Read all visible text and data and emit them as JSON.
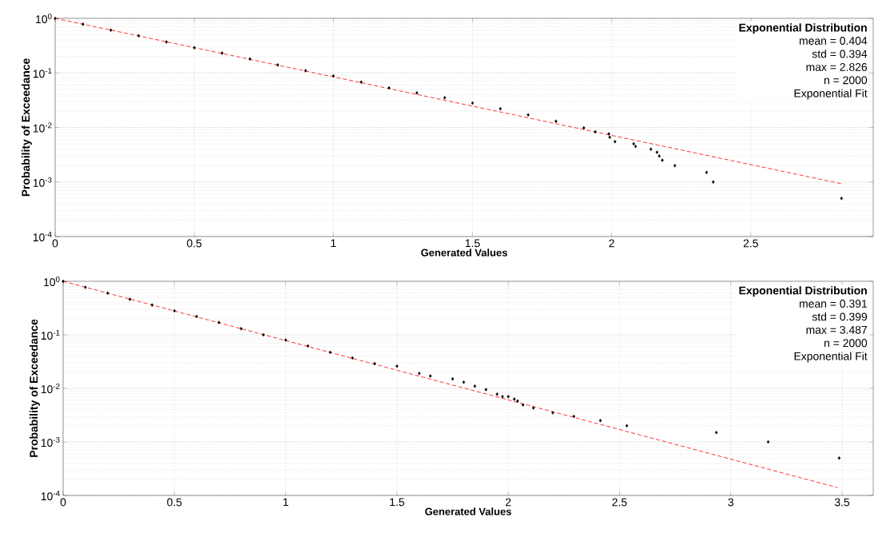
{
  "chart_data": [
    {
      "type": "scatter",
      "xlabel": "Generated Values",
      "ylabel": "Probability of Exceedance",
      "log": "y",
      "grid": true,
      "xlim": [
        0,
        2.94
      ],
      "ylim": [
        0.0001,
        1
      ],
      "xticks": [
        0,
        0.5,
        1,
        1.5,
        2,
        2.5
      ],
      "yticks": [
        {
          "value": 0.0001,
          "label": "10$^{-4}$"
        },
        {
          "value": 0.001,
          "label": "10$^{-3}$"
        },
        {
          "value": 0.01,
          "label": "10$^{-2}$"
        },
        {
          "value": 0.1,
          "label": "10$^{-1}$"
        },
        {
          "value": 1,
          "label": "10$^{0}$"
        }
      ],
      "annotations": [
        "**Exponential Distribution**",
        "mean = 0.404",
        "std = 0.394",
        "max = 2.826",
        "n = 2000",
        "Exponential Fit"
      ],
      "series": [
        {
          "color": "#000000",
          "marker": "diamond",
          "x": [
            0,
            0.1,
            0.2,
            0.3,
            0.4,
            0.5,
            0.6,
            0.7,
            0.8,
            0.9,
            1.0,
            1.1,
            1.2,
            1.3,
            1.4,
            1.5,
            1.6,
            1.7,
            1.8,
            1.9,
            1.941,
            1.99,
            1.993,
            2.012,
            2.079,
            2.086,
            2.141,
            2.163,
            2.171,
            2.182,
            2.227,
            2.341,
            2.365,
            2.826
          ],
          "values": [
            1,
            0.78,
            0.61,
            0.48,
            0.37,
            0.29,
            0.23,
            0.18,
            0.14,
            0.11,
            0.088,
            0.068,
            0.053,
            0.043,
            0.035,
            0.028,
            0.022,
            0.017,
            0.013,
            0.0098,
            0.0083,
            0.0076,
            0.0066,
            0.0055,
            0.005,
            0.0045,
            0.004,
            0.0035,
            0.003,
            0.0025,
            0.002,
            0.0015,
            0.001,
            0.0005
          ]
        },
        {
          "type": "line",
          "color": "#ff0000",
          "line_style": "dashed",
          "marker": "none",
          "x": [
            0,
            2.826
          ],
          "values": [
            1,
            0.00093
          ]
        }
      ]
    },
    {
      "type": "scatter",
      "xlabel": "Generated Values",
      "ylabel": "Probability of Exceedance",
      "log": "y",
      "grid": true,
      "xlim": [
        0,
        3.64
      ],
      "ylim": [
        0.0001,
        1
      ],
      "xticks": [
        0,
        0.5,
        1,
        1.5,
        2,
        2.5,
        3,
        3.5
      ],
      "yticks": [
        {
          "value": 0.0001,
          "label": "10$^{-4}$"
        },
        {
          "value": 0.001,
          "label": "10$^{-3}$"
        },
        {
          "value": 0.01,
          "label": "10$^{-2}$"
        },
        {
          "value": 0.1,
          "label": "10$^{-1}$"
        },
        {
          "value": 1,
          "label": "10$^{0}$"
        }
      ],
      "annotations": [
        "**Exponential Distribution**",
        "mean = 0.391",
        "std = 0.399",
        "max = 3.487",
        "n = 2000",
        "Exponential Fit"
      ],
      "series": [
        {
          "color": "#000000",
          "marker": "diamond",
          "x": [
            0,
            0.1,
            0.2,
            0.3,
            0.4,
            0.5,
            0.6,
            0.7,
            0.8,
            0.9,
            1.0,
            1.1,
            1.2,
            1.3,
            1.4,
            1.5,
            1.6,
            1.65,
            1.75,
            1.8,
            1.85,
            1.9,
            1.95,
            1.974,
            2.0,
            2.027,
            2.042,
            2.066,
            2.113,
            2.2,
            2.295,
            2.414,
            2.533,
            2.935,
            3.168,
            3.487
          ],
          "values": [
            1,
            0.77,
            0.6,
            0.46,
            0.36,
            0.28,
            0.22,
            0.17,
            0.13,
            0.1,
            0.08,
            0.062,
            0.047,
            0.037,
            0.029,
            0.026,
            0.019,
            0.017,
            0.015,
            0.013,
            0.011,
            0.0095,
            0.0078,
            0.007,
            0.007,
            0.0063,
            0.0058,
            0.0049,
            0.0043,
            0.0035,
            0.003,
            0.0025,
            0.002,
            0.0015,
            0.001,
            0.0005
          ]
        },
        {
          "type": "line",
          "color": "#ff0000",
          "line_style": "dashed",
          "marker": "none",
          "x": [
            0,
            3.48
          ],
          "values": [
            1,
            0.00014
          ]
        }
      ]
    }
  ]
}
